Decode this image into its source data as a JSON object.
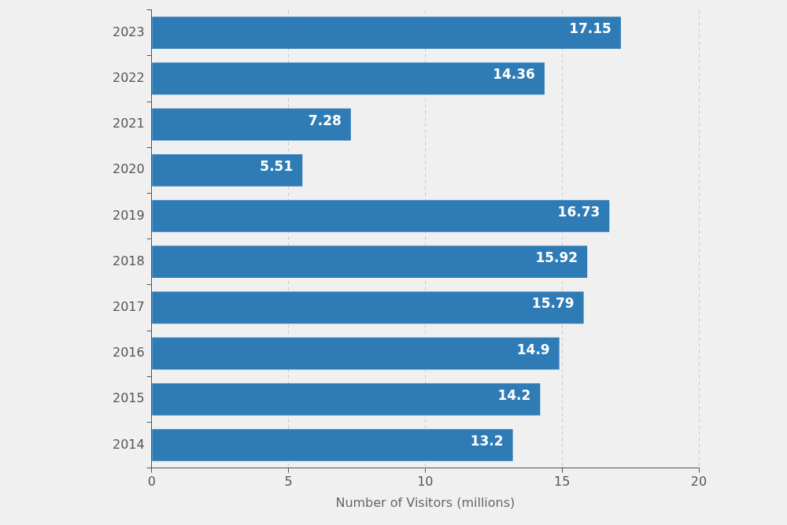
{
  "chart_data": {
    "type": "bar",
    "orientation": "horizontal",
    "categories": [
      "2014",
      "2015",
      "2016",
      "2017",
      "2018",
      "2019",
      "2020",
      "2021",
      "2022",
      "2023"
    ],
    "values": [
      13.2,
      14.2,
      14.9,
      15.79,
      15.92,
      16.73,
      5.51,
      7.28,
      14.36,
      17.15
    ],
    "color": "#2e7bb6",
    "xlabel": "Number of Visitors (millions)",
    "xlim": [
      0,
      20
    ],
    "xticks": [
      0,
      5,
      10,
      15,
      20
    ],
    "grid": true,
    "data_labels": true
  }
}
